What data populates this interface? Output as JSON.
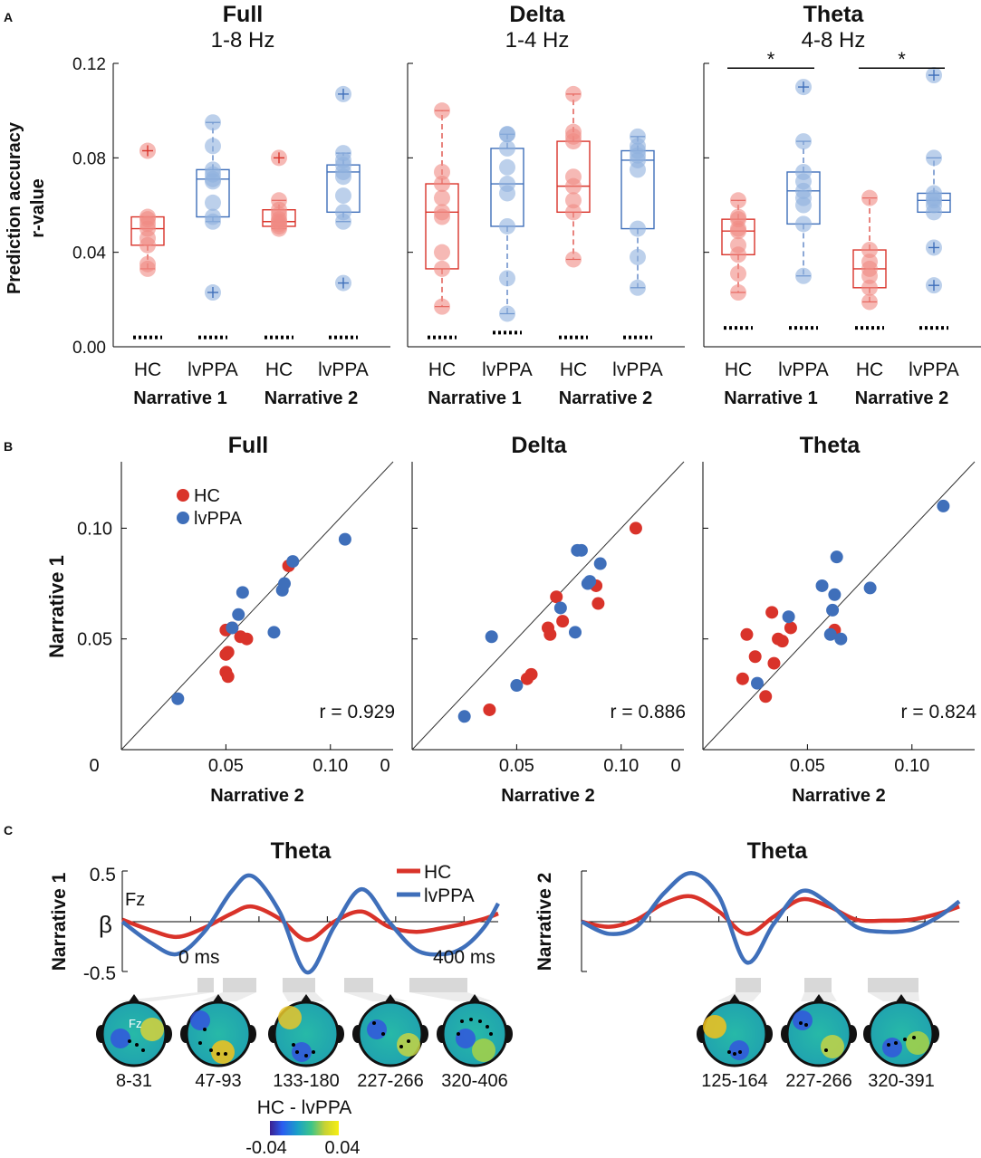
{
  "chart_data": {
    "panel_labels": [
      "A",
      "B",
      "C"
    ],
    "colors": {
      "hc": "#d9332a",
      "lvppa": "#3f6fba",
      "hc_light": "#f08a84",
      "lvppa_light": "#8fb0de"
    },
    "panel_A": {
      "type": "box",
      "ylabel_line1": "Prediction accuracy",
      "ylabel_line2": "r-value",
      "ylim": [
        0,
        0.12
      ],
      "yticks": [
        "0.00",
        "0.04",
        "0.08",
        "0.12"
      ],
      "yticks_values": [
        0,
        0.04,
        0.08,
        0.12
      ],
      "group_labels": [
        "HC",
        "lvPPA",
        "HC",
        "lvPPA"
      ],
      "narrative_labels": [
        "Narrative 1",
        "Narrative 2"
      ],
      "sig_marker": "*",
      "subplots": [
        {
          "title": "Full",
          "subtitle": "1-8 Hz",
          "boxes": [
            {
              "group": "HC",
              "q1": 0.043,
              "median": 0.05,
              "q3": 0.055,
              "whisker_low": 0.033,
              "whisker_high": 0.055,
              "points": [
                0.033,
                0.035,
                0.043,
                0.046,
                0.05,
                0.052,
                0.054,
                0.055,
                0.083
              ],
              "outliers": [
                0.083
              ],
              "chance": 0.004
            },
            {
              "group": "lvPPA",
              "q1": 0.055,
              "median": 0.071,
              "q3": 0.075,
              "whisker_low": 0.053,
              "whisker_high": 0.095,
              "points": [
                0.023,
                0.053,
                0.055,
                0.061,
                0.07,
                0.071,
                0.073,
                0.075,
                0.085,
                0.095
              ],
              "outliers": [
                0.023
              ],
              "chance": 0.004
            },
            {
              "group": "HC",
              "q1": 0.051,
              "median": 0.053,
              "q3": 0.058,
              "whisker_low": 0.05,
              "whisker_high": 0.062,
              "points": [
                0.05,
                0.051,
                0.052,
                0.053,
                0.054,
                0.056,
                0.058,
                0.062,
                0.08
              ],
              "outliers": [
                0.08
              ],
              "chance": 0.004
            },
            {
              "group": "lvPPA",
              "q1": 0.057,
              "median": 0.074,
              "q3": 0.077,
              "whisker_low": 0.053,
              "whisker_high": 0.082,
              "points": [
                0.027,
                0.053,
                0.057,
                0.064,
                0.072,
                0.074,
                0.077,
                0.079,
                0.082,
                0.107
              ],
              "outliers": [
                0.027,
                0.107
              ],
              "chance": 0.004
            }
          ],
          "significance": []
        },
        {
          "title": "Delta",
          "subtitle": "1-4 Hz",
          "boxes": [
            {
              "group": "HC",
              "q1": 0.033,
              "median": 0.057,
              "q3": 0.069,
              "whisker_low": 0.017,
              "whisker_high": 0.1,
              "points": [
                0.017,
                0.033,
                0.04,
                0.055,
                0.057,
                0.063,
                0.069,
                0.074,
                0.1
              ],
              "outliers": [],
              "chance": 0.004
            },
            {
              "group": "lvPPA",
              "q1": 0.051,
              "median": 0.069,
              "q3": 0.084,
              "whisker_low": 0.014,
              "whisker_high": 0.09,
              "points": [
                0.014,
                0.029,
                0.051,
                0.065,
                0.069,
                0.076,
                0.084,
                0.09,
                0.09
              ],
              "outliers": [],
              "chance": 0.006
            },
            {
              "group": "HC",
              "q1": 0.057,
              "median": 0.068,
              "q3": 0.087,
              "whisker_low": 0.037,
              "whisker_high": 0.107,
              "points": [
                0.037,
                0.057,
                0.062,
                0.068,
                0.072,
                0.087,
                0.089,
                0.091,
                0.107
              ],
              "outliers": [],
              "chance": 0.004
            },
            {
              "group": "lvPPA",
              "q1": 0.05,
              "median": 0.079,
              "q3": 0.083,
              "whisker_low": 0.025,
              "whisker_high": 0.089,
              "points": [
                0.025,
                0.038,
                0.05,
                0.075,
                0.079,
                0.081,
                0.083,
                0.085,
                0.089
              ],
              "outliers": [],
              "chance": 0.004
            }
          ],
          "significance": []
        },
        {
          "title": "Theta",
          "subtitle": "4-8 Hz",
          "boxes": [
            {
              "group": "HC",
              "q1": 0.039,
              "median": 0.049,
              "q3": 0.054,
              "whisker_low": 0.023,
              "whisker_high": 0.062,
              "points": [
                0.023,
                0.031,
                0.039,
                0.043,
                0.049,
                0.05,
                0.054,
                0.055,
                0.062
              ],
              "outliers": [],
              "chance": 0.008
            },
            {
              "group": "lvPPA",
              "q1": 0.052,
              "median": 0.066,
              "q3": 0.074,
              "whisker_low": 0.03,
              "whisker_high": 0.087,
              "points": [
                0.03,
                0.052,
                0.06,
                0.063,
                0.066,
                0.07,
                0.074,
                0.087,
                0.11
              ],
              "outliers": [
                0.11
              ],
              "chance": 0.008
            },
            {
              "group": "HC",
              "q1": 0.025,
              "median": 0.033,
              "q3": 0.041,
              "whisker_low": 0.019,
              "whisker_high": 0.063,
              "points": [
                0.019,
                0.025,
                0.03,
                0.033,
                0.036,
                0.041,
                0.063
              ],
              "outliers": [],
              "chance": 0.008
            },
            {
              "group": "lvPPA",
              "q1": 0.057,
              "median": 0.062,
              "q3": 0.065,
              "whisker_low": 0.057,
              "whisker_high": 0.08,
              "points": [
                0.026,
                0.042,
                0.057,
                0.06,
                0.062,
                0.063,
                0.065,
                0.08,
                0.115
              ],
              "outliers": [
                0.026,
                0.042,
                0.115
              ],
              "chance": 0.008
            }
          ],
          "significance": [
            {
              "from": 0,
              "to": 1,
              "y": 0.118
            },
            {
              "from": 2,
              "to": 3,
              "y": 0.118
            }
          ]
        }
      ]
    },
    "panel_B": {
      "type": "scatter",
      "xlabel": "Narrative 2",
      "ylabel": "Narrative 1",
      "xlim": [
        0,
        0.13
      ],
      "ylim": [
        0,
        0.13
      ],
      "ticks": [
        0.05,
        0.1
      ],
      "tick_labels": [
        "0.05",
        "0.10"
      ],
      "origin_label": "0",
      "legend": [
        "HC",
        "lvPPA"
      ],
      "subplots": [
        {
          "title": "Full",
          "r_text": "r = 0.929",
          "hc": [
            [
              0.05,
              0.054
            ],
            [
              0.053,
              0.055
            ],
            [
              0.057,
              0.051
            ],
            [
              0.06,
              0.05
            ],
            [
              0.05,
              0.043
            ],
            [
              0.051,
              0.044
            ],
            [
              0.05,
              0.035
            ],
            [
              0.051,
              0.033
            ],
            [
              0.08,
              0.083
            ]
          ],
          "lvppa": [
            [
              0.027,
              0.023
            ],
            [
              0.053,
              0.055
            ],
            [
              0.056,
              0.061
            ],
            [
              0.058,
              0.071
            ],
            [
              0.073,
              0.053
            ],
            [
              0.077,
              0.072
            ],
            [
              0.078,
              0.075
            ],
            [
              0.082,
              0.085
            ],
            [
              0.107,
              0.095
            ]
          ]
        },
        {
          "title": "Delta",
          "r_text": "r = 0.886",
          "hc": [
            [
              0.037,
              0.018
            ],
            [
              0.055,
              0.032
            ],
            [
              0.057,
              0.034
            ],
            [
              0.065,
              0.055
            ],
            [
              0.066,
              0.052
            ],
            [
              0.069,
              0.069
            ],
            [
              0.072,
              0.058
            ],
            [
              0.088,
              0.074
            ],
            [
              0.089,
              0.066
            ],
            [
              0.107,
              0.1
            ]
          ],
          "lvppa": [
            [
              0.025,
              0.015
            ],
            [
              0.038,
              0.051
            ],
            [
              0.05,
              0.029
            ],
            [
              0.071,
              0.064
            ],
            [
              0.078,
              0.053
            ],
            [
              0.079,
              0.09
            ],
            [
              0.081,
              0.09
            ],
            [
              0.084,
              0.075
            ],
            [
              0.085,
              0.076
            ],
            [
              0.09,
              0.084
            ]
          ]
        },
        {
          "title": "Theta",
          "r_text": "r = 0.824",
          "hc": [
            [
              0.019,
              0.032
            ],
            [
              0.021,
              0.052
            ],
            [
              0.025,
              0.042
            ],
            [
              0.03,
              0.024
            ],
            [
              0.033,
              0.062
            ],
            [
              0.034,
              0.039
            ],
            [
              0.036,
              0.05
            ],
            [
              0.038,
              0.049
            ],
            [
              0.042,
              0.055
            ],
            [
              0.063,
              0.054
            ]
          ],
          "lvppa": [
            [
              0.026,
              0.03
            ],
            [
              0.041,
              0.06
            ],
            [
              0.057,
              0.074
            ],
            [
              0.061,
              0.052
            ],
            [
              0.062,
              0.063
            ],
            [
              0.063,
              0.07
            ],
            [
              0.064,
              0.087
            ],
            [
              0.066,
              0.05
            ],
            [
              0.08,
              0.073
            ],
            [
              0.115,
              0.11
            ]
          ]
        }
      ]
    },
    "panel_C": {
      "type": "line",
      "ylabel": "β",
      "ylim": [
        -0.5,
        0.5
      ],
      "yticks": [
        "0.5",
        "-0.5"
      ],
      "xlim": [
        -100,
        450
      ],
      "time_labels": [
        "0 ms",
        "400 ms"
      ],
      "electrode_label": "Fz",
      "legend": [
        "HC",
        "lvPPA"
      ],
      "colorbar": {
        "label": "HC - lvPPA",
        "min_label": "-0.04",
        "max_label": "0.04"
      },
      "left": {
        "title": "Theta",
        "row_label": "Narrative 1",
        "hc": [
          [
            -100,
            0.02
          ],
          [
            -60,
            -0.08
          ],
          [
            -20,
            -0.15
          ],
          [
            20,
            -0.06
          ],
          [
            60,
            0.08
          ],
          [
            90,
            0.15
          ],
          [
            130,
            0.03
          ],
          [
            170,
            -0.18
          ],
          [
            210,
            0.0
          ],
          [
            250,
            0.1
          ],
          [
            290,
            -0.05
          ],
          [
            330,
            -0.1
          ],
          [
            370,
            -0.06
          ],
          [
            400,
            -0.02
          ],
          [
            430,
            0.03
          ],
          [
            450,
            0.08
          ]
        ],
        "lvppa": [
          [
            -100,
            0.0
          ],
          [
            -60,
            -0.2
          ],
          [
            -20,
            -0.32
          ],
          [
            20,
            -0.1
          ],
          [
            60,
            0.3
          ],
          [
            90,
            0.45
          ],
          [
            130,
            0.1
          ],
          [
            170,
            -0.5
          ],
          [
            210,
            -0.05
          ],
          [
            250,
            0.32
          ],
          [
            290,
            0.0
          ],
          [
            330,
            -0.28
          ],
          [
            370,
            -0.32
          ],
          [
            400,
            -0.25
          ],
          [
            430,
            -0.05
          ],
          [
            450,
            0.18
          ]
        ],
        "sig_windows": [
          "8-31",
          "47-93",
          "133-180",
          "227-266",
          "320-406"
        ]
      },
      "right": {
        "title": "Theta",
        "row_label": "Narrative 2",
        "hc": [
          [
            -100,
            0.0
          ],
          [
            -60,
            -0.05
          ],
          [
            -20,
            0.02
          ],
          [
            20,
            0.18
          ],
          [
            60,
            0.25
          ],
          [
            100,
            0.1
          ],
          [
            140,
            -0.12
          ],
          [
            180,
            0.05
          ],
          [
            220,
            0.22
          ],
          [
            260,
            0.15
          ],
          [
            300,
            0.02
          ],
          [
            340,
            0.01
          ],
          [
            380,
            0.02
          ],
          [
            420,
            0.08
          ],
          [
            450,
            0.15
          ]
        ],
        "lvppa": [
          [
            -100,
            0.0
          ],
          [
            -60,
            -0.12
          ],
          [
            -20,
            -0.05
          ],
          [
            20,
            0.28
          ],
          [
            60,
            0.48
          ],
          [
            100,
            0.25
          ],
          [
            140,
            -0.4
          ],
          [
            180,
            -0.02
          ],
          [
            220,
            0.3
          ],
          [
            260,
            0.18
          ],
          [
            300,
            -0.05
          ],
          [
            340,
            -0.1
          ],
          [
            380,
            -0.08
          ],
          [
            420,
            0.05
          ],
          [
            450,
            0.2
          ]
        ],
        "sig_windows": [
          "125-164",
          "227-266",
          "320-391"
        ]
      }
    }
  }
}
